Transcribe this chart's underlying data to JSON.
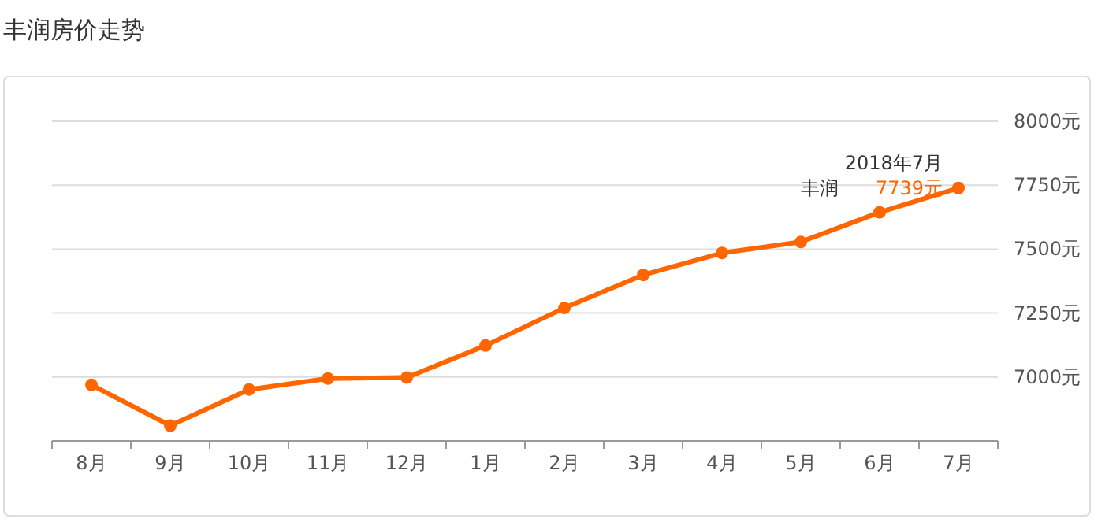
{
  "chart_data": {
    "type": "line",
    "title": "丰润房价走势",
    "categories": [
      "8月",
      "9月",
      "10月",
      "11月",
      "12月",
      "1月",
      "2月",
      "3月",
      "4月",
      "5月",
      "6月",
      "7月"
    ],
    "series": [
      {
        "name": "丰润",
        "color": "#ff6600",
        "values": [
          6969,
          6810,
          6951,
          6994,
          6998,
          7123,
          7270,
          7399,
          7485,
          7528,
          7644,
          7739
        ],
        "value_labels": [
          null,
          null,
          null,
          null,
          null,
          null,
          null,
          null,
          null,
          null,
          null,
          "7739元"
        ]
      }
    ],
    "ylim": [
      6750,
      8000
    ],
    "yticks": [
      {
        "value": 7000,
        "label": "7000元"
      },
      {
        "value": 7250,
        "label": "7250元"
      },
      {
        "value": 7500,
        "label": "7500元"
      },
      {
        "value": 7750,
        "label": "7750元"
      },
      {
        "value": 8000,
        "label": "8000元"
      }
    ],
    "annotations": [
      {
        "text": "2018年7月",
        "x": "7月",
        "y": 7739
      }
    ],
    "grid": "y",
    "marker": "circle",
    "line_style": "solid"
  }
}
